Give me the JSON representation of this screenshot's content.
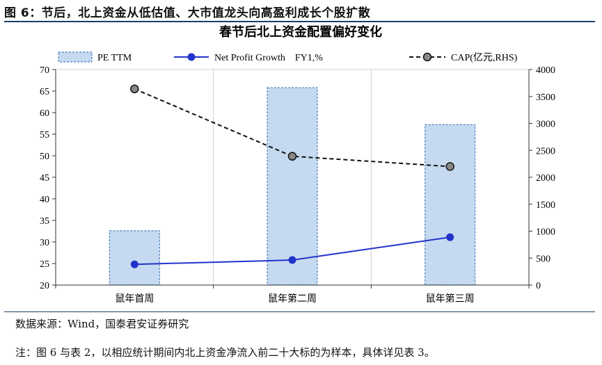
{
  "figure_title": "图 6：节后，北上资金从低估值、大市值龙头向高盈利成长个股扩散",
  "source": "数据来源：Wind，国泰君安证券研究",
  "note": "注：图 6 与表 2，以相应统计期间内北上资金净流入前二十大标的为样本，具体详见表 3。",
  "colors": {
    "bar_fill": "#c5daf0",
    "bar_stroke": "#4f81bd",
    "line_blue": "#2233cc",
    "line_black": "#111111",
    "grid": "#d0d0d0",
    "rule": "#1f3b6b"
  },
  "chart_data": {
    "type": "bar",
    "title": "春节后北上资金配置偏好变化",
    "categories": [
      "鼠年首周",
      "鼠年第二周",
      "鼠年第三周"
    ],
    "series": [
      {
        "name": "PE TTM",
        "kind": "bar",
        "axis": "left",
        "values": [
          32.6,
          65.8,
          57.2
        ]
      },
      {
        "name": "Net Profit Growth    FY1,%",
        "kind": "line",
        "axis": "left",
        "values": [
          24.8,
          25.8,
          31.1
        ]
      },
      {
        "name": "CAP(亿元,RHS)",
        "kind": "line-dashed",
        "axis": "right",
        "values": [
          3640,
          2390,
          2200
        ]
      }
    ],
    "ylim_left": [
      20,
      70
    ],
    "yticks_left": [
      20,
      25,
      30,
      35,
      40,
      45,
      50,
      55,
      60,
      65,
      70
    ],
    "ylim_right": [
      0,
      4000
    ],
    "yticks_right": [
      0,
      500,
      1000,
      1500,
      2000,
      2500,
      3000,
      3500,
      4000
    ],
    "grid": true,
    "legend": "top"
  }
}
